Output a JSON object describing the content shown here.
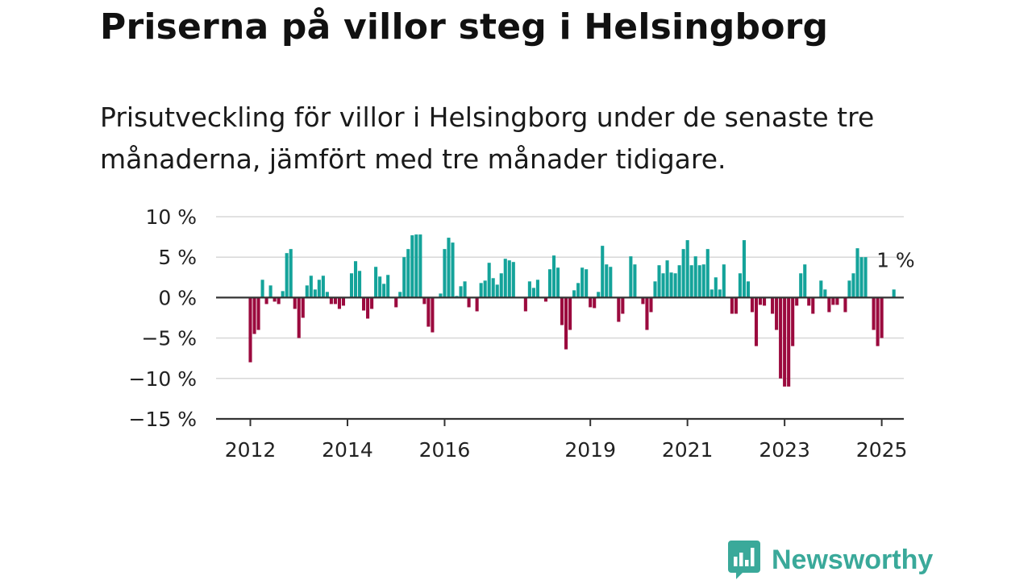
{
  "title": "Priserna på villor steg i Helsingborg",
  "subtitle": "Prisutveckling för villor i Helsingborg under de senaste tre månaderna, jämfört med tre månader tidigare.",
  "colors": {
    "positive": "#14a39a",
    "negative": "#9b0a3e",
    "zero_line": "#333333",
    "gridline": "#d7d7d7",
    "brand": "#3aa99a"
  },
  "logo": {
    "text": "Newsworthy",
    "icon": "newsworthy-logo-icon"
  },
  "chart_data": {
    "type": "bar",
    "title": "Priserna på villor steg i Helsingborg",
    "xlabel": "",
    "ylabel": "",
    "ylim": [
      -15,
      10
    ],
    "y_ticks": [
      10,
      5,
      0,
      -5,
      -10,
      -15
    ],
    "y_tick_labels": [
      "10 %",
      "5 %",
      "0 %",
      "−5 %",
      "−10 %",
      "−15 %"
    ],
    "x_ticks": [
      2012,
      2014,
      2016,
      2019,
      2021,
      2023,
      2025
    ],
    "x_tick_labels": [
      "2012",
      "2014",
      "2016",
      "2019",
      "2021",
      "2023",
      "2025"
    ],
    "grid": true,
    "legend": "none",
    "last_value_label": "1 %",
    "x_start": 2012,
    "values": [
      -8,
      -4.5,
      -4,
      2.2,
      -0.8,
      1.5,
      -0.5,
      -0.8,
      0.8,
      5.5,
      6,
      -1.4,
      -5,
      -2.5,
      1.5,
      2.7,
      1,
      2.2,
      2.7,
      0.7,
      -0.8,
      -0.8,
      -1.4,
      -1,
      0,
      3,
      4.5,
      3.3,
      -1.6,
      -2.6,
      -1.4,
      3.8,
      2.6,
      1.7,
      2.8,
      0,
      -1.2,
      0.7,
      5,
      6,
      7.7,
      7.8,
      7.8,
      -0.8,
      -3.6,
      -4.3,
      0,
      0.5,
      6,
      7.4,
      6.8,
      0.2,
      1.4,
      2,
      -1.2,
      0,
      -1.7,
      1.8,
      2.1,
      4.3,
      2.4,
      1.6,
      3,
      4.8,
      4.6,
      4.4,
      0,
      0,
      -1.7,
      2,
      1.2,
      2.2,
      0,
      -0.5,
      3.5,
      5.2,
      3.7,
      -3.4,
      -6.4,
      -4,
      0.9,
      1.8,
      3.7,
      3.5,
      -1.2,
      -1.3,
      0.7,
      6.4,
      4.1,
      3.8,
      0,
      -3,
      -2,
      0,
      5.1,
      4.1,
      0,
      -0.8,
      -4,
      -1.8,
      2,
      4,
      3,
      4.6,
      3.1,
      3,
      4,
      6,
      7.1,
      4,
      5.1,
      4,
      4.1,
      6,
      1,
      2.5,
      1,
      4.1,
      0,
      -2,
      -2,
      3,
      7.1,
      2,
      -1.8,
      -6,
      -0.9,
      -1,
      0,
      -2,
      -4,
      -10,
      -11,
      -11,
      -6,
      -1,
      3,
      4.1,
      -1,
      -2,
      0,
      2.1,
      1,
      -1.8,
      -0.9,
      -0.9,
      0,
      -1.8,
      2.1,
      3,
      6.1,
      5,
      5,
      0,
      -4,
      -6,
      -5,
      0,
      0,
      1
    ]
  }
}
